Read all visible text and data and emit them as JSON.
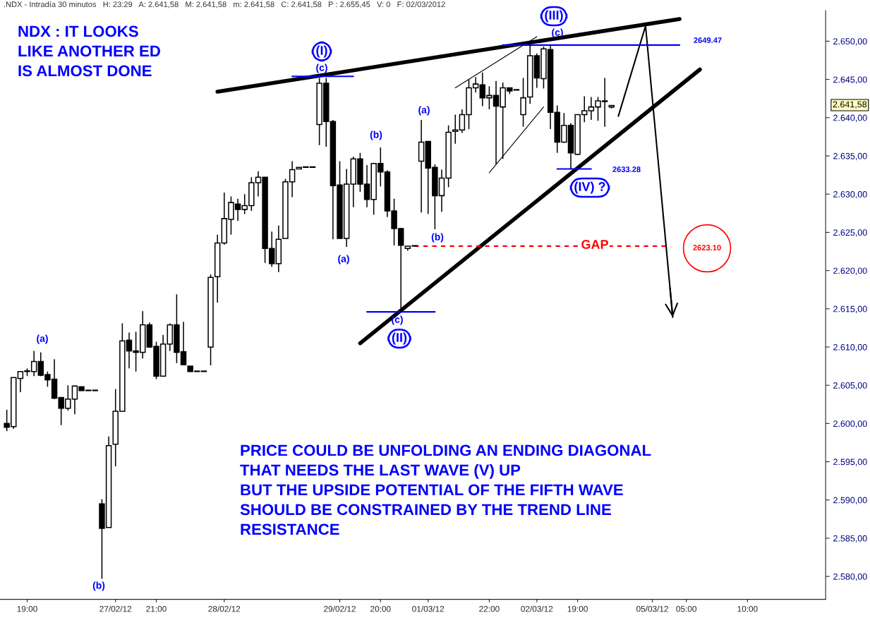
{
  "chart_data": {
    "type": "candlestick",
    "title": ".NDX - Intradía 30 minutos   H: 23:29   A: 2.641,58   M: 2.641,58   m: 2.641,58   C: 2.641,58   P : 2.655,45   V: 0   F: 02/03/2012",
    "categories": [
      null,
      null,
      null,
      "19:00",
      null,
      null,
      null,
      null,
      null,
      null,
      null,
      null,
      null,
      null,
      null,
      null,
      "27/02/12",
      null,
      null,
      null,
      null,
      null,
      "21:00",
      null,
      null,
      null,
      null,
      null,
      null,
      null,
      null,
      null,
      "28/02/12",
      null,
      null,
      null,
      null,
      null,
      null,
      null,
      null,
      null,
      null,
      null,
      null,
      null,
      null,
      null,
      null,
      "29/02/12",
      null,
      null,
      null,
      null,
      null,
      "20:00",
      null,
      null,
      null,
      null,
      null,
      null,
      "01/03/12",
      null,
      null,
      null,
      null,
      null,
      null,
      null,
      null,
      "22:00",
      null,
      null,
      null,
      null,
      null,
      null,
      "02/03/12",
      null,
      null,
      null,
      null,
      null,
      "19:00",
      null,
      null,
      null,
      null,
      null,
      null,
      null,
      null,
      null,
      null,
      "05/03/12",
      null,
      null,
      null,
      null,
      "05:00",
      null,
      null,
      null,
      null,
      null,
      null,
      null,
      null,
      "10:00",
      null,
      null,
      null,
      null,
      null,
      null,
      null,
      null,
      null,
      null,
      null
    ],
    "ohlc": [
      [
        2600.0,
        2601.8,
        2599.0,
        2599.5
      ],
      [
        2599.6,
        2606.0,
        2599.3,
        2606.0
      ],
      [
        2605.9,
        2606.8,
        2604.1,
        2606.8
      ],
      [
        2606.8,
        2607.2,
        2606.2,
        2606.9
      ],
      [
        2606.8,
        2609.5,
        2606.2,
        2608.1
      ],
      [
        2608.1,
        2609.3,
        2606.2,
        2606.3
      ],
      [
        2606.4,
        2606.8,
        2604.8,
        2605.7
      ],
      [
        2605.8,
        2608.4,
        2603.2,
        2603.3
      ],
      [
        2603.4,
        2603.4,
        2599.8,
        2602.0
      ],
      [
        2602.0,
        2605.0,
        2601.7,
        2603.2
      ],
      [
        2603.2,
        2605.0,
        2601.2,
        2604.9
      ],
      [
        2604.8,
        2604.8,
        2604.3,
        2604.3
      ],
      [
        2604.3,
        2604.3,
        2604.3,
        2604.3
      ],
      [
        2604.3,
        2604.3,
        2604.3,
        2604.3
      ],
      [
        2589.5,
        2590.1,
        2579.7,
        2586.3
      ],
      [
        2586.4,
        2598.3,
        2586.4,
        2597.1
      ],
      [
        2597.3,
        2604.5,
        2594.4,
        2601.6
      ],
      [
        2601.6,
        2613.1,
        2601.6,
        2610.8
      ],
      [
        2610.9,
        2611.9,
        2607.2,
        2609.5
      ],
      [
        2609.5,
        2612.0,
        2606.8,
        2609.3
      ],
      [
        2609.3,
        2614.7,
        2608.5,
        2612.9
      ],
      [
        2612.9,
        2613.2,
        2609.9,
        2610.0
      ],
      [
        2610.1,
        2610.7,
        2605.8,
        2606.2
      ],
      [
        2606.2,
        2611.6,
        2606.2,
        2610.4
      ],
      [
        2610.4,
        2613.1,
        2609.5,
        2612.9
      ],
      [
        2612.9,
        2616.9,
        2607.9,
        2609.3
      ],
      [
        2609.4,
        2613.3,
        2607.7,
        2607.7
      ],
      [
        2607.5,
        2607.5,
        2606.8,
        2606.8
      ],
      [
        2606.8,
        2606.8,
        2606.8,
        2606.8
      ],
      [
        2606.8,
        2606.8,
        2606.8,
        2606.8
      ],
      [
        2610.0,
        2619.5,
        2607.6,
        2619.1
      ],
      [
        2619.2,
        2624.7,
        2615.8,
        2623.6
      ],
      [
        2623.6,
        2630.2,
        2623.4,
        2626.8
      ],
      [
        2626.7,
        2629.7,
        2624.7,
        2628.9
      ],
      [
        2628.7,
        2629.4,
        2626.5,
        2628.0
      ],
      [
        2628.0,
        2630.0,
        2627.4,
        2628.5
      ],
      [
        2628.5,
        2632.2,
        2627.8,
        2631.5
      ],
      [
        2631.5,
        2633.0,
        2629.7,
        2632.2
      ],
      [
        2632.2,
        2632.2,
        2621.0,
        2622.9
      ],
      [
        2622.9,
        2625.1,
        2620.5,
        2620.9
      ],
      [
        2620.9,
        2625.9,
        2619.8,
        2624.1
      ],
      [
        2624.2,
        2632.0,
        2624.2,
        2631.6
      ],
      [
        2631.6,
        2634.3,
        2629.6,
        2633.2
      ],
      [
        2633.3,
        2633.5,
        2633.3,
        2633.5
      ],
      [
        2633.5,
        2633.5,
        2633.5,
        2633.5
      ],
      [
        2633.5,
        2633.5,
        2633.5,
        2633.5
      ],
      [
        2639.1,
        2645.2,
        2636.4,
        2644.5
      ],
      [
        2644.5,
        2645.2,
        2636.2,
        2639.5
      ],
      [
        2639.5,
        2639.7,
        2624.1,
        2631.1
      ],
      [
        2631.2,
        2634.3,
        2624.2,
        2624.2
      ],
      [
        2624.2,
        2633.3,
        2623.1,
        2631.3
      ],
      [
        2631.3,
        2634.9,
        2628.3,
        2634.6
      ],
      [
        2634.6,
        2635.4,
        2630.3,
        2631.3
      ],
      [
        2631.3,
        2633.8,
        2628.3,
        2629.3
      ],
      [
        2629.3,
        2634.1,
        2627.3,
        2634.0
      ],
      [
        2634.0,
        2636.1,
        2631.0,
        2632.9
      ],
      [
        2632.9,
        2633.1,
        2627.0,
        2627.8
      ],
      [
        2627.8,
        2629.4,
        2623.3,
        2625.5
      ],
      [
        2625.5,
        2625.6,
        2614.6,
        2623.3
      ],
      [
        2622.9,
        2623.2,
        2622.6,
        2623.2
      ],
      [
        2623.2,
        2623.2,
        2623.2,
        2623.2
      ],
      [
        2634.3,
        2639.7,
        2627.6,
        2636.8
      ],
      [
        2636.9,
        2636.9,
        2627.4,
        2633.4
      ],
      [
        2633.5,
        2633.9,
        2625.4,
        2629.8
      ],
      [
        2629.8,
        2633.2,
        2627.7,
        2632.1
      ],
      [
        2632.1,
        2639.0,
        2630.9,
        2638.1
      ],
      [
        2638.2,
        2640.4,
        2636.6,
        2638.4
      ],
      [
        2638.4,
        2641.1,
        2638.0,
        2640.4
      ],
      [
        2640.4,
        2645.0,
        2638.5,
        2643.9
      ],
      [
        2643.9,
        2645.3,
        2643.3,
        2644.4
      ],
      [
        2644.3,
        2645.9,
        2641.5,
        2642.6
      ],
      [
        2642.6,
        2644.1,
        2641.1,
        2642.9
      ],
      [
        2642.9,
        2644.8,
        2633.9,
        2641.5
      ],
      [
        2641.4,
        2644.6,
        2634.6,
        2643.9
      ],
      [
        2643.9,
        2643.9,
        2643.1,
        2643.5
      ],
      [
        2643.6,
        2643.6,
        2643.6,
        2643.6
      ],
      [
        2640.4,
        2645.2,
        2638.8,
        2642.6
      ],
      [
        2642.7,
        2649.6,
        2641.8,
        2648.1
      ],
      [
        2648.1,
        2648.4,
        2643.9,
        2645.2
      ],
      [
        2645.1,
        2649.3,
        2643.8,
        2649.0
      ],
      [
        2648.9,
        2649.5,
        2638.5,
        2640.7
      ],
      [
        2640.7,
        2641.6,
        2635.4,
        2636.8
      ],
      [
        2636.8,
        2640.6,
        2636.7,
        2639.0
      ],
      [
        2639.0,
        2639.3,
        2633.3,
        2635.4
      ],
      [
        2635.2,
        2640.4,
        2635.1,
        2640.4
      ],
      [
        2640.4,
        2642.8,
        2639.4,
        2640.9
      ],
      [
        2640.9,
        2642.7,
        2639.7,
        2641.4
      ],
      [
        2641.4,
        2642.7,
        2639.6,
        2642.2
      ],
      [
        2642.2,
        2645.2,
        2638.8,
        2642.1
      ],
      [
        2641.4,
        2641.6,
        2641.2,
        2641.6
      ],
      null,
      null,
      null,
      null,
      null,
      null,
      null,
      null,
      null,
      null,
      null,
      null,
      null,
      null,
      null,
      null,
      null,
      null,
      null,
      null,
      null,
      null,
      null,
      null,
      null,
      null,
      null,
      null,
      null,
      null,
      null
    ],
    "series": [
      {
        "type": "line",
        "color": "#000000",
        "values": [
          null,
          null,
          null,
          null,
          null,
          null,
          null,
          null,
          null,
          null,
          null,
          null,
          null,
          null,
          null,
          null,
          null,
          null,
          null,
          null,
          null,
          null,
          null,
          null,
          null,
          null,
          null,
          null,
          null,
          null,
          null,
          2643.4,
          null,
          null,
          null,
          null,
          null,
          null,
          null,
          null,
          null,
          null,
          null,
          null,
          null,
          null,
          null,
          null,
          null,
          null,
          null,
          null,
          null,
          null,
          null,
          null,
          null,
          null,
          null,
          null,
          null,
          null,
          null,
          null,
          null,
          null,
          null,
          null,
          null,
          null,
          null,
          null,
          null,
          null,
          null,
          null,
          null,
          null,
          null,
          null,
          null,
          null,
          null,
          null,
          null,
          null,
          null,
          null,
          null,
          null,
          null,
          null,
          null,
          null,
          null,
          null,
          null,
          null,
          null,
          2652.9,
          null,
          null,
          null,
          null,
          null,
          null,
          null,
          null,
          null,
          null,
          null,
          null,
          null,
          null,
          null,
          null,
          null,
          null,
          null,
          null,
          null
        ]
      },
      {
        "type": "line",
        "color": "#000000",
        "values": [
          null,
          null,
          null,
          null,
          null,
          null,
          null,
          null,
          null,
          null,
          null,
          null,
          null,
          null,
          null,
          null,
          null,
          null,
          null,
          null,
          null,
          null,
          null,
          null,
          null,
          null,
          null,
          null,
          null,
          null,
          null,
          null,
          null,
          null,
          null,
          null,
          null,
          null,
          null,
          null,
          null,
          null,
          null,
          null,
          null,
          null,
          null,
          null,
          null,
          null,
          null,
          null,
          2610.5,
          null,
          null,
          null,
          null,
          null,
          null,
          null,
          null,
          null,
          null,
          null,
          null,
          null,
          null,
          null,
          null,
          null,
          null,
          null,
          null,
          null,
          null,
          null,
          null,
          null,
          null,
          null,
          null,
          null,
          null,
          null,
          null,
          null,
          null,
          null,
          null,
          null,
          null,
          null,
          null,
          null,
          null,
          null,
          null,
          null,
          null,
          null,
          null,
          null,
          2646.3,
          null,
          null,
          null,
          null,
          null,
          null,
          null,
          null,
          null,
          null,
          null,
          null,
          null,
          null,
          null,
          null,
          null,
          null
        ]
      },
      {
        "type": "line",
        "color": "#000000",
        "values": [
          null,
          null,
          null,
          null,
          null,
          null,
          null,
          null,
          null,
          null,
          null,
          null,
          null,
          null,
          null,
          null,
          null,
          null,
          null,
          null,
          null,
          null,
          null,
          null,
          null,
          null,
          null,
          null,
          null,
          null,
          null,
          null,
          null,
          null,
          null,
          null,
          null,
          null,
          null,
          null,
          null,
          null,
          null,
          null,
          null,
          null,
          null,
          null,
          null,
          null,
          null,
          null,
          null,
          null,
          null,
          null,
          null,
          null,
          null,
          null,
          null,
          null,
          null,
          null,
          null,
          null,
          2643.9,
          null,
          null,
          null,
          null,
          null,
          null,
          null,
          null,
          null,
          null,
          null,
          2650.6,
          null,
          null,
          null,
          null,
          null,
          null,
          null,
          null,
          null,
          null,
          null,
          null,
          null,
          null,
          null,
          null,
          null,
          null,
          null,
          null,
          null,
          null,
          null,
          null,
          null,
          null,
          null,
          null,
          null,
          null,
          null,
          null,
          null,
          null,
          null,
          null,
          null,
          null,
          null,
          null,
          null,
          null
        ]
      },
      {
        "type": "line",
        "color": "#000000",
        "values": [
          null,
          null,
          null,
          null,
          null,
          null,
          null,
          null,
          null,
          null,
          null,
          null,
          null,
          null,
          null,
          null,
          null,
          null,
          null,
          null,
          null,
          null,
          null,
          null,
          null,
          null,
          null,
          null,
          null,
          null,
          null,
          null,
          null,
          null,
          null,
          null,
          null,
          null,
          null,
          null,
          null,
          null,
          null,
          null,
          null,
          null,
          null,
          null,
          null,
          null,
          null,
          null,
          null,
          null,
          null,
          null,
          null,
          null,
          null,
          null,
          null,
          null,
          null,
          null,
          null,
          null,
          null,
          null,
          null,
          null,
          null,
          2632.8,
          null,
          null,
          null,
          null,
          null,
          null,
          null,
          2641.4,
          null,
          null,
          null,
          null,
          null,
          null,
          null,
          null,
          null,
          null,
          null,
          null,
          null,
          null,
          null,
          null,
          null,
          null,
          null,
          null,
          null,
          null,
          null,
          null,
          null,
          null,
          null,
          null,
          null,
          null,
          null,
          null,
          null,
          null,
          null,
          null,
          null,
          null,
          null,
          null,
          null
        ]
      },
      {
        "type": "line",
        "color": "#000000",
        "values": [
          null,
          null,
          null,
          null,
          null,
          null,
          null,
          null,
          null,
          null,
          null,
          null,
          null,
          null,
          null,
          null,
          null,
          null,
          null,
          null,
          null,
          null,
          null,
          null,
          null,
          null,
          null,
          null,
          null,
          null,
          null,
          null,
          null,
          null,
          null,
          null,
          null,
          null,
          null,
          null,
          null,
          null,
          null,
          null,
          null,
          null,
          null,
          null,
          null,
          null,
          null,
          null,
          null,
          null,
          null,
          null,
          null,
          null,
          null,
          null,
          null,
          null,
          null,
          null,
          null,
          null,
          null,
          null,
          null,
          null,
          null,
          null,
          null,
          null,
          null,
          null,
          null,
          null,
          null,
          null,
          null,
          null,
          null,
          null,
          null,
          null,
          null,
          null,
          null,
          null,
          2640.2,
          null,
          null,
          null,
          2652.0,
          null,
          null,
          null,
          2613.9,
          null,
          null,
          null,
          null,
          null,
          null,
          null,
          null,
          null,
          null,
          null,
          null,
          null,
          null,
          null,
          null,
          null,
          null,
          null,
          null,
          null,
          null
        ]
      },
      {
        "type": "line",
        "color": "#0000ff",
        "values": [
          null,
          null,
          null,
          null,
          null,
          null,
          null,
          null,
          null,
          null,
          null,
          null,
          null,
          null,
          null,
          null,
          null,
          null,
          null,
          null,
          null,
          null,
          null,
          null,
          null,
          null,
          null,
          null,
          null,
          null,
          null,
          null,
          null,
          null,
          null,
          null,
          null,
          null,
          null,
          null,
          null,
          null,
          2645.4,
          null,
          null,
          null,
          null,
          null,
          null,
          null,
          null,
          2645.4,
          null,
          null,
          null,
          null,
          null,
          null,
          null,
          null,
          null,
          null,
          null,
          null,
          null,
          null,
          null,
          null,
          null,
          null,
          null,
          null,
          null,
          null,
          null,
          null,
          null,
          null,
          null,
          null,
          null,
          null,
          null,
          null,
          null,
          null,
          null,
          null,
          null,
          null,
          null,
          null,
          null,
          null,
          null,
          null,
          null,
          null,
          null,
          null,
          null,
          null,
          null,
          null,
          null,
          null,
          null,
          null,
          null,
          null,
          null,
          null,
          null,
          null,
          null,
          null,
          null,
          null,
          null,
          null,
          null
        ]
      },
      {
        "type": "line",
        "color": "#0000ff",
        "values": [
          null,
          null,
          null,
          null,
          null,
          null,
          null,
          null,
          null,
          null,
          null,
          null,
          null,
          null,
          null,
          null,
          null,
          null,
          null,
          null,
          null,
          null,
          null,
          null,
          null,
          null,
          null,
          null,
          null,
          null,
          null,
          null,
          null,
          null,
          null,
          null,
          null,
          null,
          null,
          null,
          null,
          null,
          null,
          null,
          null,
          null,
          null,
          null,
          null,
          null,
          null,
          null,
          null,
          null,
          null,
          null,
          null,
          null,
          null,
          null,
          null,
          null,
          null,
          null,
          null,
          null,
          null,
          null,
          null,
          null,
          null,
          null,
          null,
          2649.5,
          null,
          null,
          null,
          null,
          null,
          null,
          null,
          null,
          null,
          null,
          null,
          null,
          null,
          null,
          null,
          null,
          null,
          null,
          null,
          null,
          null,
          null,
          null,
          null,
          null,
          2649.5,
          null,
          null,
          null,
          null,
          null,
          null,
          null,
          null,
          null,
          null,
          null,
          null,
          null,
          null,
          null,
          null,
          null,
          null,
          null,
          null,
          null
        ]
      },
      {
        "type": "line",
        "color": "#0000ff",
        "values": [
          null,
          null,
          null,
          null,
          null,
          null,
          null,
          null,
          null,
          null,
          null,
          null,
          null,
          null,
          null,
          null,
          null,
          null,
          null,
          null,
          null,
          null,
          null,
          null,
          null,
          null,
          null,
          null,
          null,
          null,
          null,
          null,
          null,
          null,
          null,
          null,
          null,
          null,
          null,
          null,
          null,
          null,
          null,
          null,
          null,
          null,
          null,
          null,
          null,
          null,
          null,
          null,
          null,
          2614.6,
          null,
          null,
          null,
          null,
          null,
          null,
          null,
          null,
          null,
          2614.6,
          null,
          null,
          null,
          null,
          null,
          null,
          null,
          null,
          null,
          null,
          null,
          null,
          null,
          null,
          null,
          null,
          null,
          null,
          null,
          null,
          null,
          null,
          null,
          null,
          null,
          null,
          null,
          null,
          null,
          null,
          null,
          null,
          null,
          null,
          null,
          null,
          null,
          null,
          null,
          null,
          null,
          null,
          null,
          null,
          null,
          null,
          null,
          null,
          null,
          null,
          null,
          null,
          null,
          null,
          null,
          null,
          null
        ]
      },
      {
        "type": "line",
        "color": "#0000ff",
        "values": [
          null,
          null,
          null,
          null,
          null,
          null,
          null,
          null,
          null,
          null,
          null,
          null,
          null,
          null,
          null,
          null,
          null,
          null,
          null,
          null,
          null,
          null,
          null,
          null,
          null,
          null,
          null,
          null,
          null,
          null,
          null,
          null,
          null,
          null,
          null,
          null,
          null,
          null,
          null,
          null,
          null,
          null,
          null,
          null,
          null,
          null,
          null,
          null,
          null,
          null,
          null,
          null,
          null,
          null,
          null,
          null,
          null,
          null,
          null,
          null,
          null,
          null,
          null,
          null,
          null,
          null,
          null,
          null,
          null,
          null,
          null,
          null,
          null,
          null,
          null,
          null,
          null,
          null,
          null,
          null,
          null,
          2633.3,
          null,
          null,
          null,
          null,
          2633.3,
          null,
          null,
          null,
          null,
          null,
          null,
          null,
          null,
          null,
          null,
          null,
          null,
          null,
          null,
          null,
          null,
          null,
          null,
          null,
          null,
          null,
          null,
          null,
          null,
          null,
          null,
          null,
          null,
          null,
          null,
          null,
          null,
          null,
          null
        ]
      },
      {
        "type": "line",
        "color": "#ff0000",
        "line_style": "dashed",
        "values": [
          null,
          null,
          null,
          null,
          null,
          null,
          null,
          null,
          null,
          null,
          null,
          null,
          null,
          null,
          null,
          null,
          null,
          null,
          null,
          null,
          null,
          null,
          null,
          null,
          null,
          null,
          null,
          null,
          null,
          null,
          null,
          null,
          null,
          null,
          null,
          null,
          null,
          null,
          null,
          null,
          null,
          null,
          null,
          null,
          null,
          null,
          null,
          null,
          null,
          null,
          null,
          null,
          null,
          null,
          null,
          null,
          null,
          null,
          null,
          null,
          2623.2,
          null,
          null,
          null,
          null,
          null,
          null,
          null,
          null,
          null,
          null,
          null,
          null,
          null,
          null,
          null,
          null,
          null,
          null,
          null,
          null,
          null,
          null,
          null,
          null,
          null,
          null,
          null,
          null,
          null,
          null,
          null,
          null,
          null,
          null,
          null,
          null,
          2623.2,
          null,
          null,
          null,
          null,
          null,
          null,
          null,
          null,
          null,
          null,
          null,
          null,
          null,
          null,
          null,
          null,
          null,
          null,
          null,
          null,
          null,
          null,
          null
        ]
      }
    ],
    "annotations": [
      "NDX : IT LOOKS\nLIKE ANOTHER ED\nIS ALMOST DONE",
      "PRICE COULD BE UNFOLDING AN ENDING DIAGONAL\nTHAT NEEDS THE LAST WAVE (V) UP\nBUT THE UPSIDE POTENTIAL OF THE FIFTH WAVE\nSHOULD BE CONSTRAINED BY THE TREND LINE\nRESISTANCE",
      "(a)",
      "(b)",
      "(c)",
      "(I)",
      "(a)",
      "(b)",
      "(a)",
      "(b)",
      "(c)",
      "(II)",
      "(c)",
      "(III)",
      "(IV) ?",
      "2649.47",
      "2633.28",
      "GAP",
      "2623.10",
      "2.641,58"
    ],
    "ylim": [
      2577,
      2654
    ],
    "yticks": [
      {
        "value": 2580,
        "label": "2.580,00"
      },
      {
        "value": 2585,
        "label": "2.585,00"
      },
      {
        "value": 2590,
        "label": "2.590,00"
      },
      {
        "value": 2595,
        "label": "2.595,00"
      },
      {
        "value": 2600,
        "label": "2.600,00"
      },
      {
        "value": 2605,
        "label": "2.605,00"
      },
      {
        "value": 2610,
        "label": "2.610,00"
      },
      {
        "value": 2615,
        "label": "2.615,00"
      },
      {
        "value": 2620,
        "label": "2.620,00"
      },
      {
        "value": 2625,
        "label": "2.625,00"
      },
      {
        "value": 2630,
        "label": "2.630,00"
      },
      {
        "value": 2635,
        "label": "2.635,00"
      },
      {
        "value": 2640,
        "label": "2.640,00"
      },
      {
        "value": 2645,
        "label": "2.645,00"
      },
      {
        "value": 2650,
        "label": "2.650,00"
      }
    ]
  }
}
